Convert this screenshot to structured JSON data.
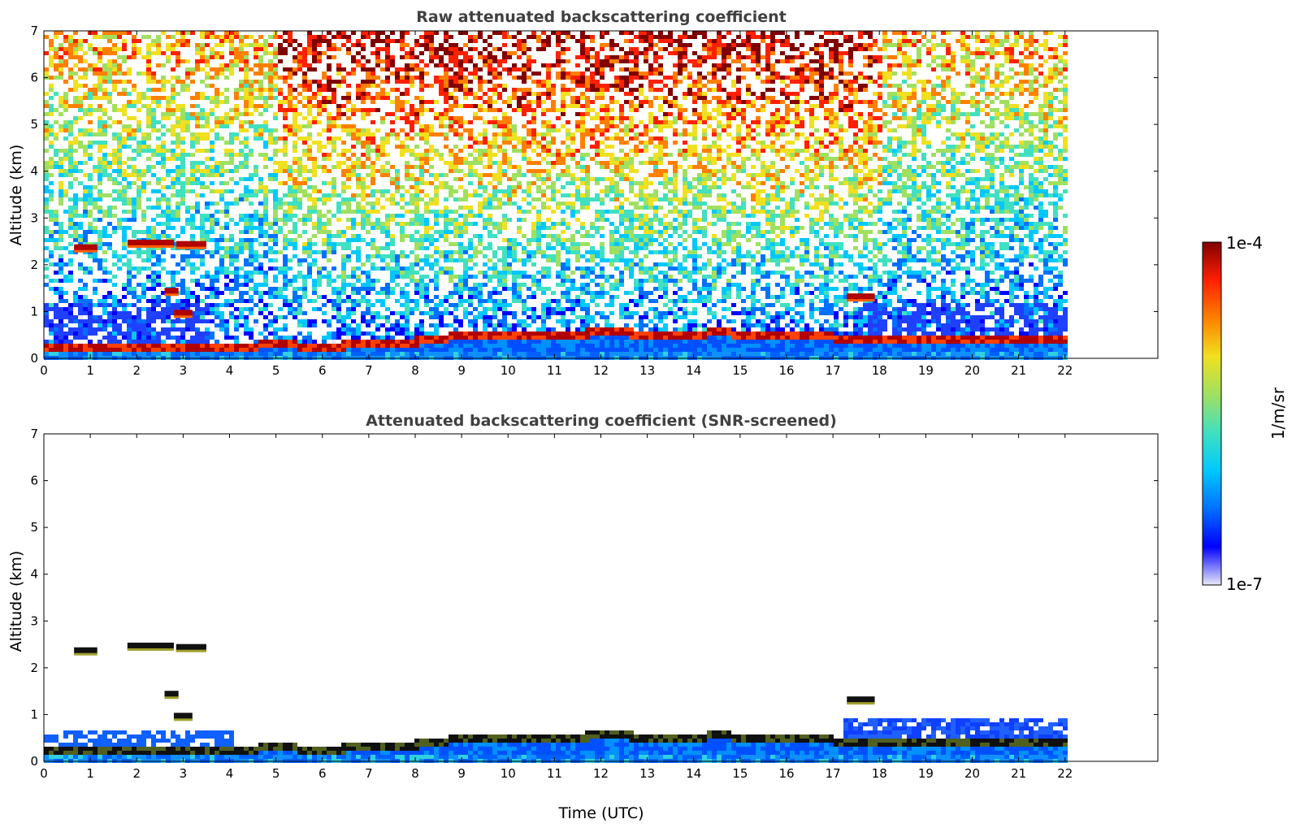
{
  "chart_data": [
    {
      "type": "heatmap",
      "title": "Raw attenuated backscattering coefficient",
      "xlabel": "",
      "ylabel": "Altitude (km)",
      "xlim": [
        0,
        24
      ],
      "ylim": [
        0,
        7
      ],
      "x_ticks": [
        0,
        1,
        2,
        3,
        4,
        5,
        6,
        7,
        8,
        9,
        10,
        11,
        12,
        13,
        14,
        15,
        16,
        17,
        18,
        19,
        20,
        21,
        22
      ],
      "y_ticks": [
        0,
        1,
        2,
        3,
        4,
        5,
        6,
        7
      ],
      "data_extent_x": [
        0,
        22
      ],
      "boundary_layer_top_km": {
        "x": [
          0,
          0.5,
          1,
          1.5,
          2,
          2.5,
          3,
          3.5,
          4,
          4.5,
          5,
          5.5,
          6,
          6.5,
          7,
          7.5,
          8,
          8.5,
          9,
          9.5,
          10,
          10.5,
          11,
          11.5,
          12,
          12.5,
          13,
          13.5,
          14,
          14.5,
          15,
          15.5,
          16,
          16.5,
          17
        ],
        "y": [
          0.25,
          0.3,
          0.28,
          0.25,
          0.25,
          0.25,
          0.25,
          0.25,
          0.28,
          0.3,
          0.4,
          0.3,
          0.28,
          0.32,
          0.35,
          0.35,
          0.4,
          0.45,
          0.55,
          0.55,
          0.55,
          0.55,
          0.5,
          0.55,
          0.62,
          0.58,
          0.55,
          0.55,
          0.55,
          0.6,
          0.55,
          0.5,
          0.55,
          0.55,
          0.5
        ]
      },
      "cloud_layers": [
        {
          "x": [
            0.65,
            1.15
          ],
          "y": 2.35
        },
        {
          "x": [
            1.8,
            2.8
          ],
          "y": 2.45
        },
        {
          "x": [
            2.85,
            3.5
          ],
          "y": 2.42
        },
        {
          "x": [
            2.6,
            2.9
          ],
          "y": 1.42
        },
        {
          "x": [
            2.8,
            3.2
          ],
          "y": 0.95
        },
        {
          "x": [
            17.3,
            17.9
          ],
          "y": 1.3
        }
      ]
    },
    {
      "type": "heatmap",
      "title": "Attenuated backscattering coefficient (SNR-screened)",
      "xlabel": "Time (UTC)",
      "ylabel": "Altitude (km)",
      "xlim": [
        0,
        24
      ],
      "ylim": [
        0,
        7
      ],
      "x_ticks": [
        0,
        1,
        2,
        3,
        4,
        5,
        6,
        7,
        8,
        9,
        10,
        11,
        12,
        13,
        14,
        15,
        16,
        17,
        18,
        19,
        20,
        21,
        22
      ],
      "y_ticks": [
        0,
        1,
        2,
        3,
        4,
        5,
        6,
        7
      ],
      "data_extent_x": [
        0,
        22
      ]
    }
  ],
  "colorbar": {
    "label": "1/m/sr",
    "max_label": "1e-4",
    "min_label": "1e-7",
    "colors": [
      "#e8e8f8",
      "#0000ff",
      "#0070ff",
      "#00c8ff",
      "#40e0c0",
      "#a0e060",
      "#f0e020",
      "#ff8000",
      "#ff2000",
      "#800000"
    ]
  }
}
